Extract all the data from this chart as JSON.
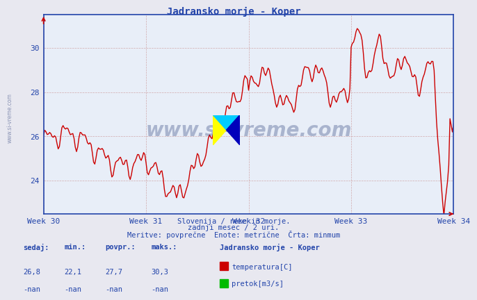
{
  "title": "Jadransko morje - Koper",
  "title_color": "#2244aa",
  "bg_color": "#e8e8f0",
  "plot_bg_color": "#e8eef8",
  "grid_color": "#cc9999",
  "grid_color_h": "#cc9999",
  "line_color": "#cc0000",
  "line_width": 1.0,
  "ytick_labels": [
    "24",
    "26",
    "28",
    "30"
  ],
  "ytick_values": [
    24,
    26,
    28,
    30
  ],
  "ymin": 22.5,
  "ymax": 31.5,
  "axis_color": "#2244aa",
  "tick_color": "#2244aa",
  "week_labels": [
    "Week 30",
    "Week 31",
    "Week 32",
    "Week 33",
    "Week 34"
  ],
  "week_positions": [
    0,
    84,
    168,
    252,
    336
  ],
  "subtitle1": "Slovenija / reke in morje.",
  "subtitle2": "zadnji mesec / 2 uri.",
  "subtitle3": "Meritve: povprečne  Enote: metrične  Črta: minmum",
  "subtitle_color": "#2244aa",
  "legend_title": "Jadransko morje - Koper",
  "legend_color": "#2244aa",
  "label_headers": [
    "sedaj:",
    "min.:",
    "povpr.:",
    "maks.:"
  ],
  "val_row1": [
    "26,8",
    "22,1",
    "27,7",
    "30,3"
  ],
  "val_row2": [
    "-nan",
    "-nan",
    "-nan",
    "-nan"
  ],
  "legend_items": [
    {
      "label": "temperatura[C]",
      "color": "#cc0000"
    },
    {
      "label": "pretok[m3/s]",
      "color": "#00bb00"
    }
  ],
  "watermark": "www.si-vreme.com",
  "watermark_color": "#1a2f6e",
  "side_label": "www.si-vreme.com"
}
